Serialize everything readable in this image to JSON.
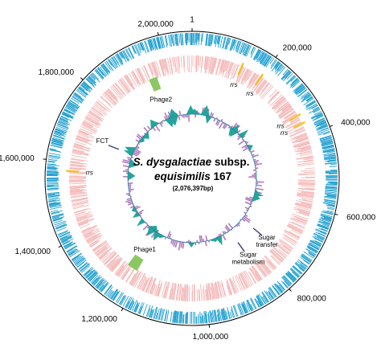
{
  "genome": {
    "title_italic_1": "S. dysgalactiae",
    "title_plain_1": " subsp.",
    "title_italic_2": "equisimilis",
    "title_plain_2": " 167",
    "size_label": "(2,076,397bp)",
    "length_bp": 2076397
  },
  "position_labels": [
    {
      "bp": 0,
      "text": "1"
    },
    {
      "bp": 200000,
      "text": "200,000"
    },
    {
      "bp": 400000,
      "text": "400,000"
    },
    {
      "bp": 600000,
      "text": "600,000"
    },
    {
      "bp": 800000,
      "text": "800,000"
    },
    {
      "bp": 1000000,
      "text": "1,000,000"
    },
    {
      "bp": 1200000,
      "text": "1,200,000"
    },
    {
      "bp": 1400000,
      "text": "1,400,000"
    },
    {
      "bp": 1600000,
      "text": "1,600,000"
    },
    {
      "bp": 1800000,
      "text": "1,800,000"
    },
    {
      "bp": 2000000,
      "text": "2,000,000"
    }
  ],
  "rrs_operons": [
    {
      "bp": 138000,
      "label": "rrs"
    },
    {
      "bp": 197000,
      "label": "rrs"
    },
    {
      "bp": 342000,
      "label": "rrs"
    },
    {
      "bp": 366000,
      "label": "rrs"
    },
    {
      "bp": 1577000,
      "label": "rrs"
    }
  ],
  "phages": [
    {
      "name": "Phage1",
      "start_bp": 1216000,
      "end_bp": 1250000
    },
    {
      "name": "Phage2",
      "start_bp": 1940000,
      "end_bp": 1966000
    }
  ],
  "regions": [
    {
      "label_lines": [
        "FCT"
      ],
      "bp": 1682000
    },
    {
      "label_lines": [
        "Sugar",
        "transfer"
      ],
      "bp": 745000
    },
    {
      "label_lines": [
        "Sugar",
        "metabolism"
      ],
      "bp": 833000
    }
  ],
  "colors": {
    "cds_outer": "#1f9fcf",
    "cds_inner": "#f4b8b8",
    "rrs": "#f2c21b",
    "phage": "#8dc765",
    "region_marker": "#3b3a85",
    "gc_positive": "#b07bbd",
    "gc_skew": "#23a59a",
    "circle": "#000000"
  }
}
